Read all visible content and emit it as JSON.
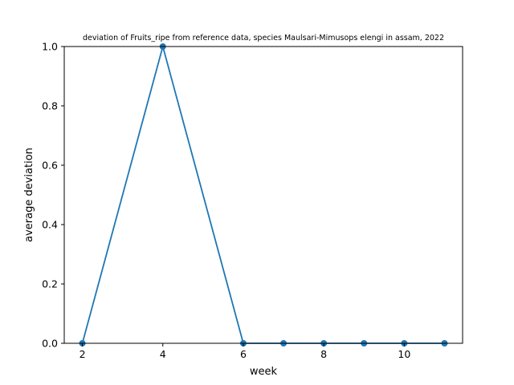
{
  "chart_data": {
    "type": "line",
    "title": "deviation of Fruits_ripe from reference data, species Maulsari-Mimusops elengi in assam, 2022",
    "xlabel": "week",
    "ylabel": "average deviation",
    "xlim": [
      1.55,
      11.45
    ],
    "ylim": [
      0,
      1.0
    ],
    "xticks": [
      2,
      4,
      6,
      8,
      10
    ],
    "xtick_labels": [
      "2",
      "4",
      "6",
      "8",
      "10"
    ],
    "yticks": [
      0,
      0.2,
      0.4,
      0.6,
      0.8,
      1.0
    ],
    "ytick_labels": [
      "0.0",
      "0.2",
      "0.4",
      "0.6",
      "0.8",
      "1.0"
    ],
    "grid": false,
    "series": [
      {
        "x": [
          2,
          4,
          6,
          7,
          8,
          9,
          10,
          11
        ],
        "y": [
          0,
          1.0,
          0,
          0,
          0,
          0,
          0,
          0
        ],
        "color": "#1f77b4",
        "marker": "circle"
      }
    ]
  }
}
